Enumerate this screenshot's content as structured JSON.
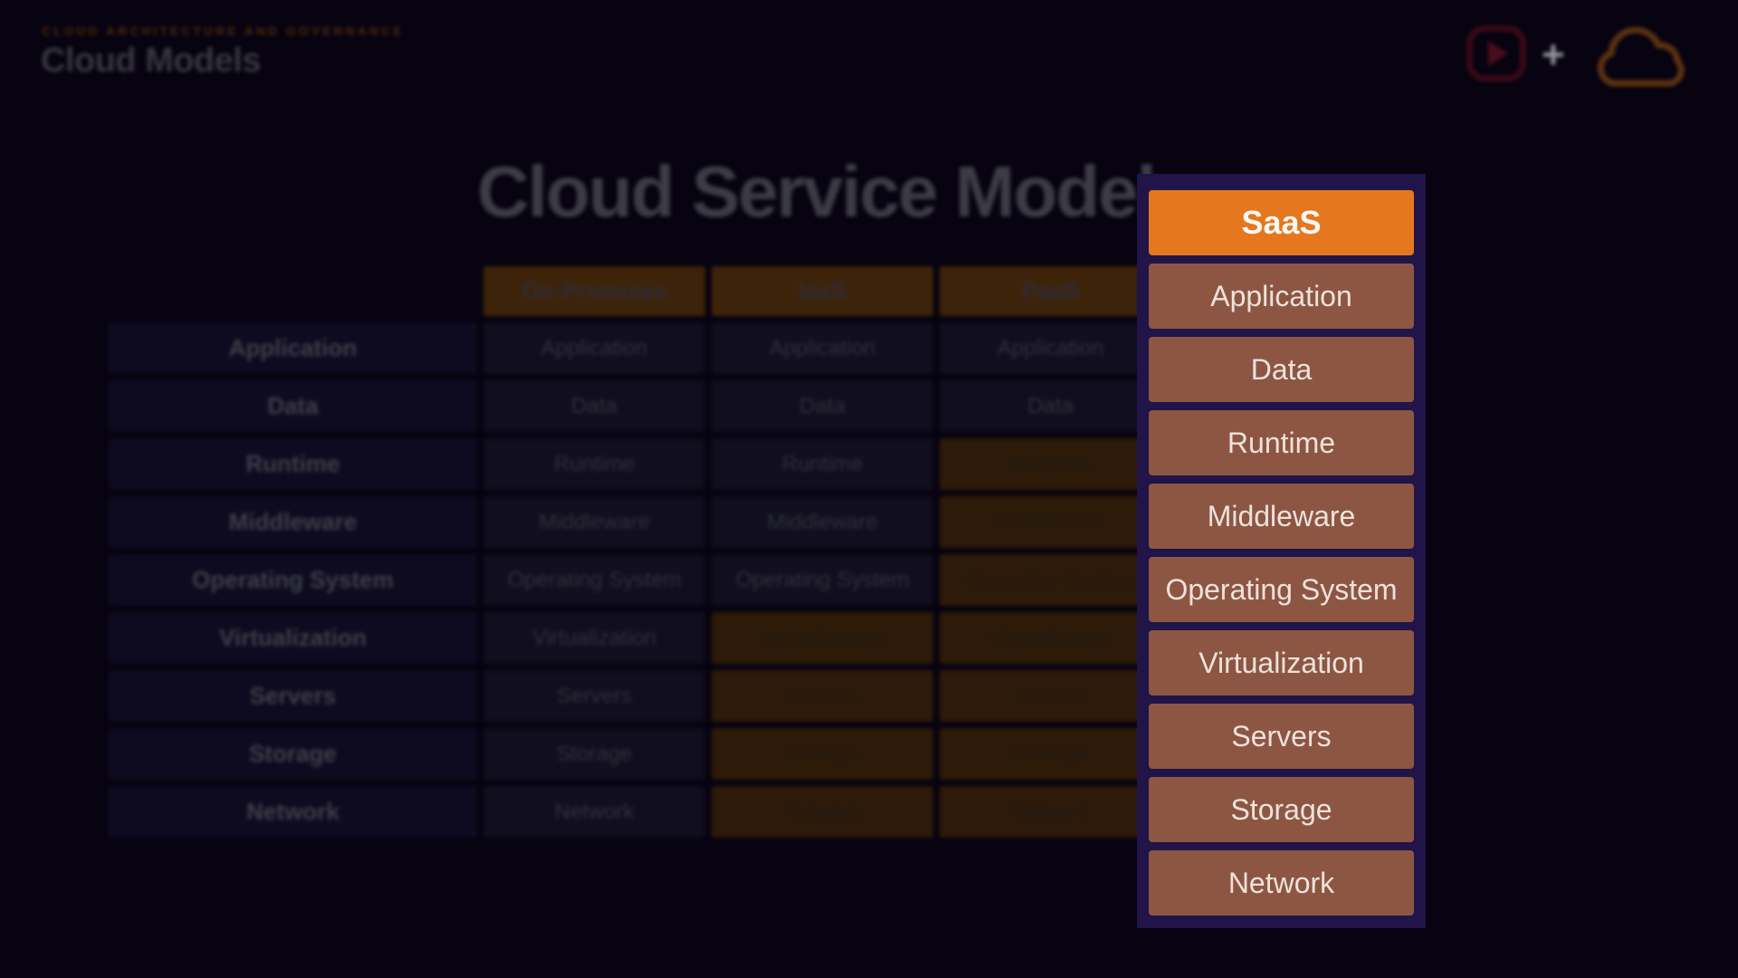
{
  "colors": {
    "page_bg": "#070310",
    "accent_orange": "#E5771E",
    "focus_row_brown": "#8D5643",
    "focus_panel_navy": "#201448"
  },
  "app_header": {
    "eyebrow": "CLOUD ARCHITECTURE AND GOVERNANCE",
    "lesson_title": "Cloud Models",
    "plus_glyph": "+",
    "icons": [
      "play-button-icon",
      "plus-icon",
      "cloud-logo-icon"
    ]
  },
  "slide": {
    "title": "Cloud Service Models",
    "table": {
      "row_labels": [
        "Application",
        "Data",
        "Runtime",
        "Middleware",
        "Operating System",
        "Virtualization",
        "Servers",
        "Storage",
        "Network"
      ],
      "columns": [
        {
          "label": "On-Premises",
          "provider_managed": []
        },
        {
          "label": "IaaS",
          "provider_managed": [
            "Virtualization",
            "Servers",
            "Storage",
            "Network"
          ]
        },
        {
          "label": "PaaS",
          "provider_managed": [
            "Runtime",
            "Middleware",
            "Operating System",
            "Virtualization",
            "Servers",
            "Storage",
            "Network"
          ]
        }
      ]
    },
    "focus_panel": {
      "header": "SaaS",
      "rows": [
        "Application",
        "Data",
        "Runtime",
        "Middleware",
        "Operating System",
        "Virtualization",
        "Servers",
        "Storage",
        "Network"
      ]
    }
  }
}
